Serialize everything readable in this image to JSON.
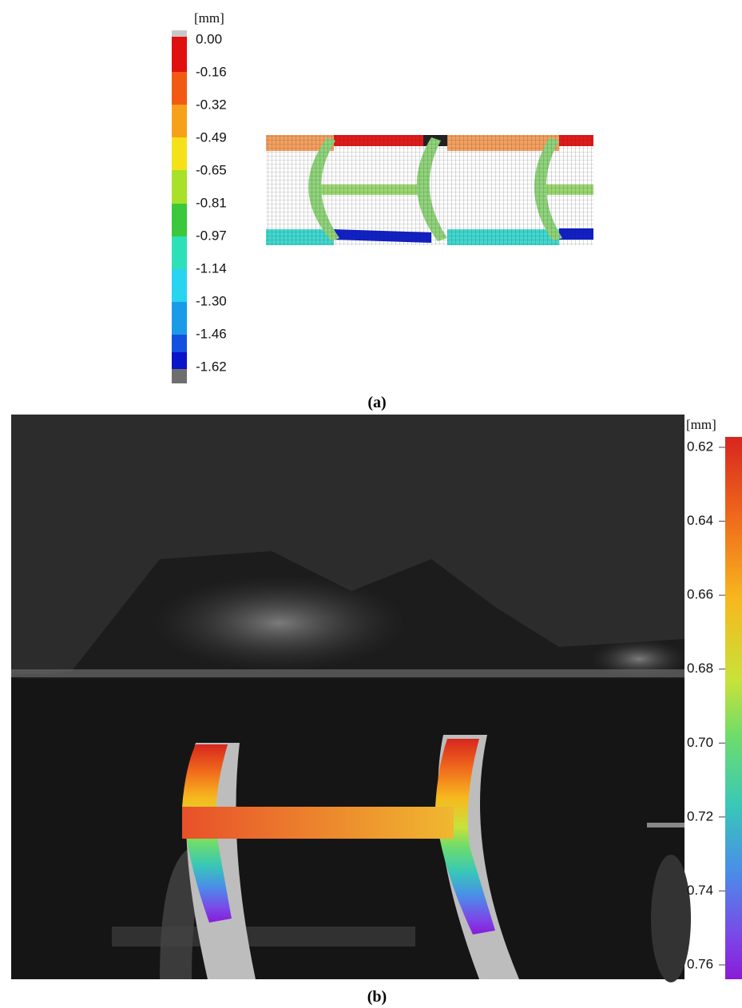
{
  "panel_a": {
    "unit": "[mm]",
    "colorbar_labels": [
      "0.00",
      "-0.16",
      "-0.32",
      "-0.49",
      "-0.65",
      "-0.81",
      "-0.97",
      "-1.14",
      "-1.30",
      "-1.46",
      "-1.62"
    ],
    "caption": "(a)"
  },
  "panel_b": {
    "unit": "[mm]",
    "colorbar_labels": [
      "0.62",
      "0.64",
      "0.66",
      "0.68",
      "0.70",
      "0.72",
      "0.74",
      "0.76"
    ],
    "caption": "(b)"
  }
}
